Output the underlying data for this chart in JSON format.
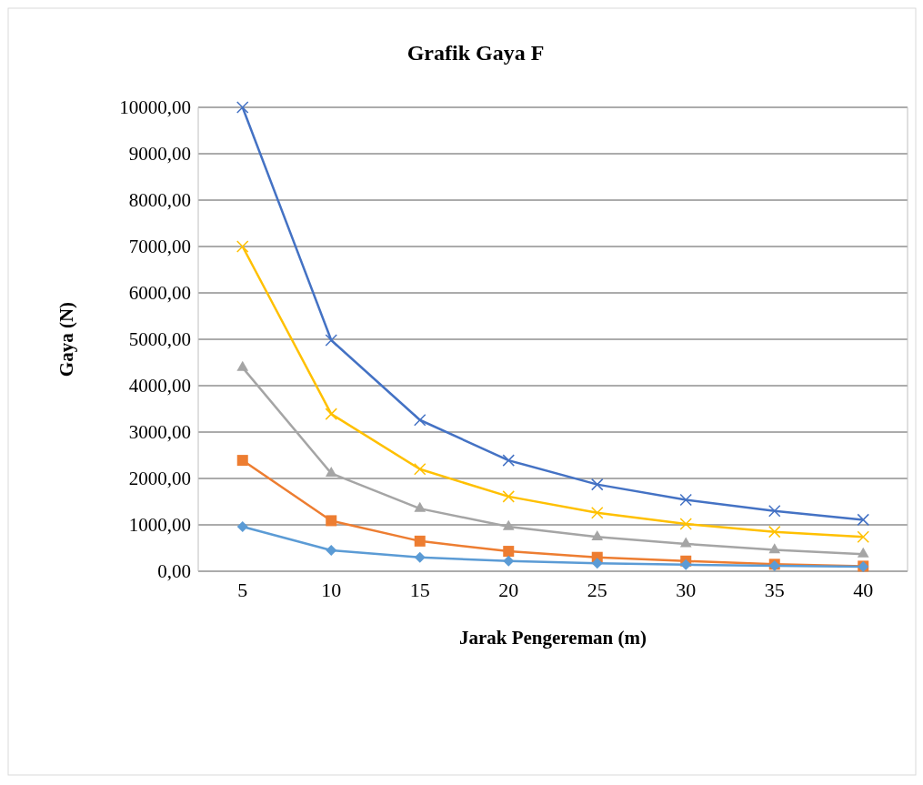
{
  "chart_data": {
    "type": "line",
    "title": "Grafik Gaya F",
    "xlabel": "Jarak Pengereman (m)",
    "ylabel": "Gaya (N)",
    "categories": [
      "5",
      "10",
      "15",
      "20",
      "25",
      "30",
      "35",
      "40"
    ],
    "series": [
      {
        "color": "#4472c4",
        "marker": "cross",
        "values": [
          10000,
          4980,
          3260,
          2390,
          1870,
          1540,
          1300,
          1110
        ]
      },
      {
        "color": "#ffc000",
        "marker": "cross",
        "values": [
          7000,
          3390,
          2200,
          1610,
          1260,
          1020,
          850,
          740
        ]
      },
      {
        "color": "#a5a5a5",
        "marker": "triangle",
        "values": [
          4390,
          2110,
          1350,
          960,
          740,
          590,
          460,
          370
        ]
      },
      {
        "color": "#ed7d31",
        "marker": "square",
        "values": [
          2390,
          1090,
          650,
          430,
          300,
          220,
          150,
          110
        ]
      },
      {
        "color": "#5b9bd5",
        "marker": "diamond",
        "values": [
          960,
          450,
          300,
          220,
          170,
          140,
          120,
          100
        ]
      }
    ],
    "ylim": [
      0,
      10000
    ],
    "yticks": [
      {
        "value": 0,
        "label": "0,00"
      },
      {
        "value": 1000,
        "label": "1000,00"
      },
      {
        "value": 2000,
        "label": "2000,00"
      },
      {
        "value": 3000,
        "label": "3000,00"
      },
      {
        "value": 4000,
        "label": "4000,00"
      },
      {
        "value": 5000,
        "label": "5000,00"
      },
      {
        "value": 6000,
        "label": "6000,00"
      },
      {
        "value": 7000,
        "label": "7000,00"
      },
      {
        "value": 8000,
        "label": "8000,00"
      },
      {
        "value": 9000,
        "label": "9000,00"
      },
      {
        "value": 10000,
        "label": "10000,00"
      }
    ],
    "grid": "y",
    "line_style": "solid"
  }
}
